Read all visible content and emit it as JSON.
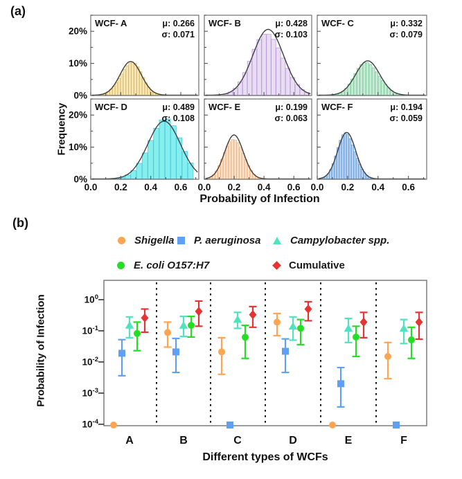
{
  "panel_a_tag": "(a)",
  "panel_b_tag": "(b)",
  "chart_data": [
    {
      "type": "bar",
      "subtype": "histogram-grid-with-normal-fit",
      "ylabel": "Frequency",
      "xlabel": "Probability of Infection",
      "x_ticks": [
        "0.0",
        "0.2",
        "0.4",
        "0.6"
      ],
      "x_tick_values": [
        0.0,
        0.2,
        0.4,
        0.6
      ],
      "y_ticks": [
        "0%",
        "10%",
        "20%"
      ],
      "y_tick_values": [
        0,
        10,
        20
      ],
      "xlim": [
        0,
        0.72
      ],
      "ylim_pct": [
        0,
        25
      ],
      "grid": false,
      "curve_color": "#3f3f3f",
      "subplots": [
        {
          "label": "WCF- A",
          "mu_text": "μ: 0.266",
          "sigma_text": "σ: 0.071",
          "mu": 0.266,
          "sigma": 0.071,
          "peak_pct": 10.5,
          "bin_width": 0.018,
          "fill": "#FAE8B4",
          "edge": "#D9BA6A"
        },
        {
          "label": "WCF- B",
          "mu_text": "μ: 0.428",
          "sigma_text": "σ: 0.103",
          "mu": 0.428,
          "sigma": 0.103,
          "peak_pct": 20.5,
          "bin_width": 0.032,
          "fill": "#EADCF3",
          "edge": "#B99CD9"
        },
        {
          "label": "WCF- C",
          "mu_text": "μ: 0.332",
          "sigma_text": "σ: 0.079",
          "mu": 0.332,
          "sigma": 0.079,
          "peak_pct": 10.7,
          "bin_width": 0.02,
          "fill": "#C6EAD4",
          "edge": "#83CBA0"
        },
        {
          "label": "WCF- D",
          "mu_text": "μ: 0.489",
          "sigma_text": "σ: 0.108",
          "mu": 0.489,
          "sigma": 0.108,
          "peak_pct": 18.0,
          "bin_width": 0.038,
          "fill": "#85EFF0",
          "edge": "#4FC9D8"
        },
        {
          "label": "WCF- E",
          "mu_text": "μ: 0.199",
          "sigma_text": "σ: 0.063",
          "mu": 0.199,
          "sigma": 0.063,
          "peak_pct": 13.7,
          "bin_width": 0.018,
          "fill": "#FBE1C5",
          "edge": "#EFB285"
        },
        {
          "label": "WCF- F",
          "mu_text": "μ: 0.194",
          "sigma_text": "σ: 0.059",
          "mu": 0.194,
          "sigma": 0.059,
          "peak_pct": 14.5,
          "bin_width": 0.016,
          "fill": "#B7D4F1",
          "edge": "#6D9EDB"
        }
      ]
    },
    {
      "type": "scatter",
      "subtype": "point-with-errorbars-log-y",
      "ylabel": "Probability of Infection",
      "xlabel": "Different types of WCFs",
      "categories": [
        "A",
        "B",
        "C",
        "D",
        "E",
        "F"
      ],
      "y_scale": "log",
      "ylim": [
        0.0001,
        1
      ],
      "y_tick_exponents": [
        0,
        -1,
        -2,
        -3,
        -4
      ],
      "floor_value": 0.0001,
      "group_separator_style": "dotted",
      "series": [
        {
          "name": "Shigella",
          "marker": "circle",
          "color": "#FFA552",
          "values": [
            0.0001,
            0.088,
            0.021,
            0.19,
            0.0001,
            0.015
          ],
          "lo": [
            null,
            0.03,
            0.004,
            0.07,
            null,
            0.0029
          ],
          "hi": [
            null,
            0.19,
            0.06,
            0.36,
            null,
            0.042
          ]
        },
        {
          "name": "P. aeruginosa",
          "marker": "square",
          "color": "#5FA0F5",
          "values": [
            0.019,
            0.021,
            0.0001,
            0.022,
            0.002,
            0.0001
          ],
          "lo": [
            0.0036,
            0.0046,
            null,
            0.0046,
            0.00036,
            null
          ],
          "hi": [
            0.052,
            0.057,
            null,
            0.055,
            0.0066,
            null
          ]
        },
        {
          "name": "Campylobacter spp.",
          "marker": "triangle",
          "color": "#4FE3BE",
          "values": [
            0.15,
            0.15,
            0.23,
            0.14,
            0.12,
            0.12
          ],
          "lo": [
            0.06,
            0.066,
            0.12,
            0.05,
            0.042,
            0.039
          ],
          "hi": [
            0.28,
            0.29,
            0.39,
            0.28,
            0.25,
            0.23
          ]
        },
        {
          "name": "E. coli O157:H7",
          "marker": "circle",
          "color": "#25DD25",
          "values": [
            0.082,
            0.15,
            0.062,
            0.12,
            0.063,
            0.051
          ],
          "lo": [
            0.023,
            0.063,
            0.013,
            0.036,
            0.015,
            0.013
          ],
          "hi": [
            0.19,
            0.29,
            0.15,
            0.23,
            0.14,
            0.13
          ]
        },
        {
          "name": "Cumulative",
          "marker": "diamond",
          "color": "#E63333",
          "values": [
            0.26,
            0.42,
            0.33,
            0.5,
            0.19,
            0.19
          ],
          "lo": [
            0.09,
            0.14,
            0.13,
            0.21,
            0.06,
            0.054
          ],
          "hi": [
            0.5,
            0.9,
            0.6,
            0.86,
            0.39,
            0.39
          ]
        }
      ]
    }
  ],
  "legend": {
    "items": [
      {
        "label": "Shigella",
        "marker": "circle",
        "color": "#FFA552",
        "italic": true
      },
      {
        "label": "P. aeruginosa",
        "marker": "square",
        "color": "#5FA0F5",
        "italic": true
      },
      {
        "label": "Campylobacter spp.",
        "marker": "triangle",
        "color": "#4FE3BE",
        "italic": true
      },
      {
        "label": "E. coli O157:H7",
        "marker": "circle",
        "color": "#25DD25",
        "italic": true
      },
      {
        "label": "Cumulative",
        "marker": "diamond",
        "color": "#E63333",
        "italic": false
      }
    ]
  }
}
